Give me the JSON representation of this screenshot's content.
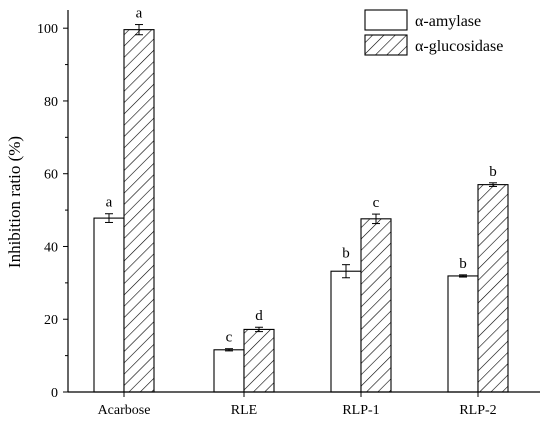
{
  "chart_data": {
    "type": "bar",
    "categories": [
      "Acarbose",
      "RLE",
      "RLP-1",
      "RLP-2"
    ],
    "series": [
      {
        "name": "α-amylase",
        "values": [
          47.8,
          11.6,
          33.2,
          31.9
        ],
        "errors": [
          1.2,
          0.3,
          1.8,
          0.3
        ],
        "labels": [
          "a",
          "c",
          "b",
          "b"
        ],
        "fill": "#ffffff",
        "pattern": "none"
      },
      {
        "name": "α-glucosidase",
        "values": [
          99.6,
          17.2,
          47.6,
          57.0
        ],
        "errors": [
          1.4,
          0.6,
          1.3,
          0.5
        ],
        "labels": [
          "a",
          "d",
          "c",
          "b"
        ],
        "fill": "#ffffff",
        "pattern": "hatch"
      }
    ],
    "title": "",
    "xlabel": "",
    "ylabel": "Inhibition ratio (%)",
    "ylim": [
      0,
      105
    ],
    "yticks": [
      0,
      20,
      40,
      60,
      80,
      100
    ],
    "grid": false,
    "legend_position": "top-right",
    "colors": {
      "axis": "#000000",
      "bar_stroke": "#000000",
      "hatch": "#000000",
      "background": "#ffffff"
    }
  }
}
